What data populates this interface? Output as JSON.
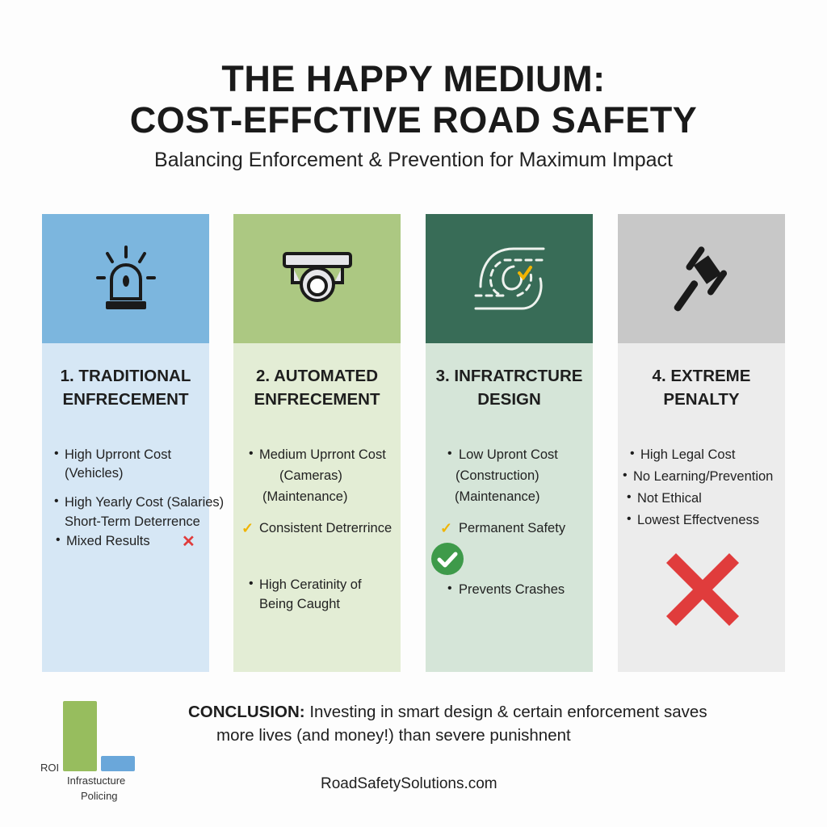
{
  "title": {
    "line1": "THE HAPPY MEDIUM:",
    "line2": "COST-EFFCTIVE ROAD SAFETY"
  },
  "subtitle": "Balancing Enforcement & Prevention for Maximum Impact",
  "colors": {
    "col1_top": "#7cb6de",
    "col1_body": "#d6e7f5",
    "col2_top": "#acc882",
    "col2_body": "#e3edd5",
    "col3_top": "#386c57",
    "col3_body": "#d5e5d8",
    "col4_top": "#c8c8c8",
    "col4_body": "#ececec",
    "check": "#f0b400",
    "cross": "#e03c3c",
    "good": "#3e9a4a"
  },
  "columns": [
    {
      "icon": "siren-icon",
      "heading": [
        "1. TRADITIONAL",
        "ENFRECEMENT"
      ],
      "lines": [
        "High Uprront Cost",
        "(Vehicles)",
        "High Yearly Cost (Salaries)",
        "Short-Term Deterrence",
        "Mixed Results"
      ]
    },
    {
      "icon": "security-camera-icon",
      "heading": [
        "2. AUTOMATED",
        "ENFRECEMENT"
      ],
      "lines": [
        "Medium Uprront Cost",
        "(Cameras)",
        "(Maintenance)",
        "Consistent Detrerrince",
        "High Ceratinity of",
        "Being Caught"
      ]
    },
    {
      "icon": "road-curve-icon",
      "heading": [
        "3. INFRATRCTURE",
        "DESIGN"
      ],
      "lines": [
        "Low Upront Cost",
        "(Construction)",
        "(Maintenance)",
        "Permanent Safety",
        "Prevents Crashes"
      ]
    },
    {
      "icon": "gavel-icon",
      "heading": [
        "4. EXTREME",
        "PENALTY"
      ],
      "lines": [
        "High Legal Cost",
        "No Learning/Prevention",
        "Not Ethical",
        "Lowest Effectveness"
      ]
    }
  ],
  "roi_chart": {
    "ylabel": "ROI",
    "categories": [
      "Infrastucture",
      "Policing"
    ],
    "relative_values": [
      1.0,
      0.22
    ]
  },
  "conclusion": {
    "label": "CONCLUSION:",
    "line1": "Investing in smart design & certain enforcement saves",
    "line2": "more lives (and money!) than severe punishnent"
  },
  "footer": "RoadSafetySolutions.com"
}
